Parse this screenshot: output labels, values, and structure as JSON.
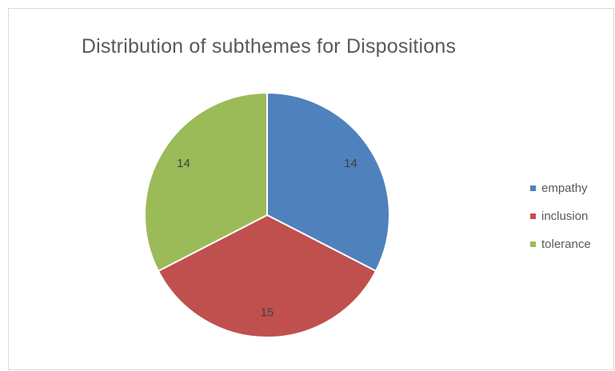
{
  "chart_data": {
    "type": "pie",
    "title": "Distribution of subthemes for Dispositions",
    "categories": [
      "empathy",
      "inclusion",
      "tolerance"
    ],
    "values": [
      14,
      15,
      14
    ],
    "colors": [
      "#4f81bd",
      "#c0504d",
      "#9bbb59"
    ],
    "data_labels": [
      "14",
      "15",
      "14"
    ],
    "legend_position": "right"
  }
}
